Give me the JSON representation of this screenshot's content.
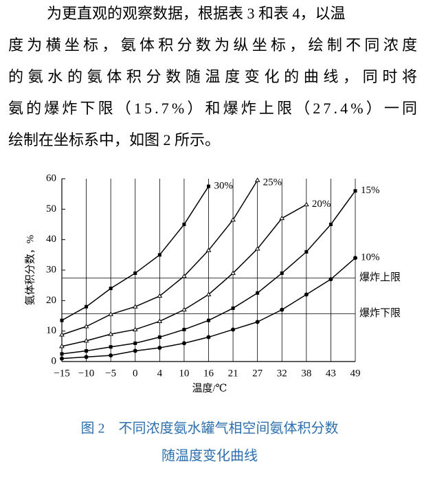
{
  "paragraph": [
    "为更直观的观察数据，根据表 3 和表 4，以温",
    "度为横坐标，氨体积分数为纵坐标，绘制不同浓度",
    "的氨水的氨体积分数随温度变化的曲线，同时将",
    "氨的爆炸下限（15.7%）和爆炸上限（27.4%）一同",
    "绘制在坐标系中，如图 2 所示。"
  ],
  "chart_data": {
    "type": "line",
    "x_label": "温度/℃",
    "y_label": "氨体积分数，%",
    "categories": [
      "−15",
      "−10",
      "−5",
      "0",
      "4",
      "10",
      "16",
      "21",
      "27",
      "32",
      "38",
      "43",
      "49"
    ],
    "series": [
      {
        "name": "10%",
        "color": "#000000",
        "marker": "circle",
        "values": [
          1,
          1.5,
          2,
          3.5,
          4.5,
          6,
          8,
          10.5,
          13,
          17,
          22,
          27,
          34
        ]
      },
      {
        "name": "15%",
        "color": "#000000",
        "marker": "square",
        "values": [
          2.5,
          3.5,
          4.8,
          6,
          8,
          10.5,
          13.5,
          17.5,
          22.5,
          29,
          36,
          45,
          56
        ]
      },
      {
        "name": "20%",
        "color": "#000000",
        "marker": "triangle",
        "values": [
          5,
          6.8,
          9,
          10.5,
          13.2,
          17,
          22,
          29,
          37,
          47,
          51.5,
          null,
          null
        ]
      },
      {
        "name": "25%",
        "color": "#000000",
        "marker": "triangle",
        "values": [
          8.8,
          11.5,
          15.5,
          18,
          21.5,
          28,
          36.5,
          46.5,
          59.5,
          null,
          null,
          null,
          null
        ]
      },
      {
        "name": "30%",
        "color": "#000000",
        "marker": "square",
        "values": [
          13.5,
          18,
          24,
          29,
          35,
          45,
          57.5,
          null,
          null,
          null,
          null,
          null,
          null
        ]
      }
    ],
    "reference_lines": [
      {
        "value": 27.4,
        "label": "爆炸上限"
      },
      {
        "value": 15.7,
        "label": "爆炸下限"
      }
    ],
    "ylim": [
      0,
      60
    ],
    "yticks": [
      0,
      10,
      20,
      30,
      40,
      50,
      60
    ],
    "grid": true
  },
  "caption": [
    "图 2　不同浓度氨水罐气相空间氨体积分数",
    "随温度变化曲线"
  ]
}
